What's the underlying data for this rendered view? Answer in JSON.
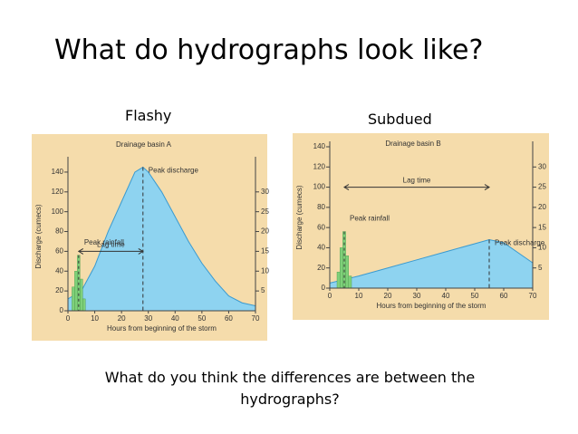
{
  "slide": {
    "title": "What do hydrographs look like?",
    "question": "What do you think the differences are between the hydrographs?"
  },
  "chart_data": [
    {
      "type": "line",
      "label": "Flashy",
      "title": "Drainage basin A",
      "xlabel": "Hours from beginning of the storm",
      "ylabel": "Discharge (cumecs)",
      "x": [
        0,
        5,
        10,
        15,
        20,
        25,
        28,
        30,
        35,
        40,
        45,
        50,
        55,
        60,
        65,
        70
      ],
      "series": [
        {
          "color": "#8ed3f0",
          "values": [
            12,
            20,
            45,
            80,
            110,
            140,
            145,
            140,
            120,
            95,
            70,
            48,
            30,
            15,
            8,
            5
          ]
        },
        {
          "type": "bar",
          "axis": "y2",
          "color": "#7fd07a",
          "x": [
            2,
            3,
            4,
            5,
            6
          ],
          "values": [
            6,
            10,
            14,
            8,
            3
          ]
        }
      ],
      "annotations": [
        "Peak discharge",
        "Peak rainfall",
        "Lag time"
      ],
      "xlim": [
        0,
        70
      ],
      "xticks": [
        0,
        10,
        20,
        30,
        40,
        50,
        60,
        70
      ],
      "ylim": [
        0,
        150
      ],
      "yticks": [
        0,
        20,
        40,
        60,
        80,
        100,
        120,
        140
      ],
      "y2lim": [
        0,
        37.5
      ],
      "y2ticks": [
        5,
        10,
        15,
        20,
        25,
        30
      ]
    },
    {
      "type": "line",
      "label": "Subdued",
      "title": "Drainage basin B",
      "xlabel": "Hours from beginning of the storm",
      "ylabel": "Discharge (cumecs)",
      "x": [
        0,
        10,
        20,
        30,
        40,
        50,
        55,
        60,
        65,
        70
      ],
      "series": [
        {
          "color": "#8ed3f0",
          "values": [
            5,
            12,
            20,
            28,
            36,
            44,
            48,
            45,
            35,
            25
          ]
        },
        {
          "type": "bar",
          "axis": "y2",
          "color": "#7fd07a",
          "x": [
            3,
            4,
            5,
            6,
            7
          ],
          "values": [
            4,
            10,
            14,
            8,
            3
          ]
        }
      ],
      "annotations": [
        "Peak discharge",
        "Peak rainfall",
        "Lag time"
      ],
      "xlim": [
        0,
        70
      ],
      "xticks": [
        0,
        10,
        20,
        30,
        40,
        50,
        60,
        70
      ],
      "ylim": [
        0,
        140
      ],
      "yticks": [
        0,
        20,
        40,
        60,
        80,
        100,
        120,
        140
      ],
      "y2lim": [
        0,
        35
      ],
      "y2ticks": [
        5,
        10,
        15,
        20,
        25,
        30
      ]
    }
  ]
}
